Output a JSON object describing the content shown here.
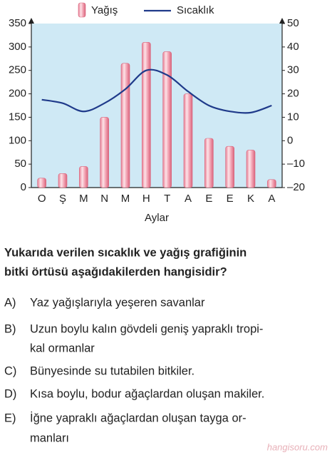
{
  "chart_data": {
    "type": "bar_line",
    "categories": [
      "O",
      "Ş",
      "M",
      "N",
      "M",
      "H",
      "T",
      "A",
      "E",
      "E",
      "K",
      "A"
    ],
    "series": [
      {
        "name": "Yağış",
        "type": "bar",
        "color": "#f2a3b3",
        "values": [
          20,
          30,
          45,
          150,
          265,
          310,
          290,
          200,
          105,
          88,
          80,
          17
        ]
      },
      {
        "name": "Sıcaklık",
        "type": "line",
        "axis": "y2",
        "color": "#1f3a8a",
        "values": [
          17.5,
          16,
          12.5,
          16,
          22,
          30,
          28,
          21,
          15,
          12.5,
          12,
          15
        ]
      }
    ],
    "ylim": [
      0,
      350
    ],
    "yticks": [
      0,
      50,
      100,
      150,
      200,
      250,
      300,
      350
    ],
    "y2lim": [
      -20,
      50
    ],
    "y2ticks": [
      {
        "value": -20,
        "label": "–20"
      },
      {
        "value": -10,
        "label": "–10"
      },
      0,
      10,
      20,
      30,
      40,
      50
    ],
    "xlabel": "Aylar",
    "background": "#cfe9f5"
  },
  "question": {
    "lines": [
      "Yukarıda verilen sıcaklık ve yağış grafiğinin",
      "bitki örtüsü aşağıdakilerden hangisidir?"
    ]
  },
  "options": [
    {
      "letter": "A)",
      "lines": [
        "Yaz yağışlarıyla yeşeren savanlar"
      ]
    },
    {
      "letter": "B)",
      "lines": [
        "Uzun boylu kalın gövdeli geniş yapraklı tropi-",
        "kal ormanlar"
      ]
    },
    {
      "letter": "C)",
      "lines": [
        "Bünyesinde su tutabilen bitkiler."
      ]
    },
    {
      "letter": "D)",
      "lines": [
        "Kısa boylu, bodur ağaçlardan oluşan makiler."
      ]
    },
    {
      "letter": "E)",
      "lines": [
        "İğne yapraklı ağaçlardan oluşan tayga or-",
        "manları"
      ]
    }
  ],
  "watermark": "hangisoru.com"
}
